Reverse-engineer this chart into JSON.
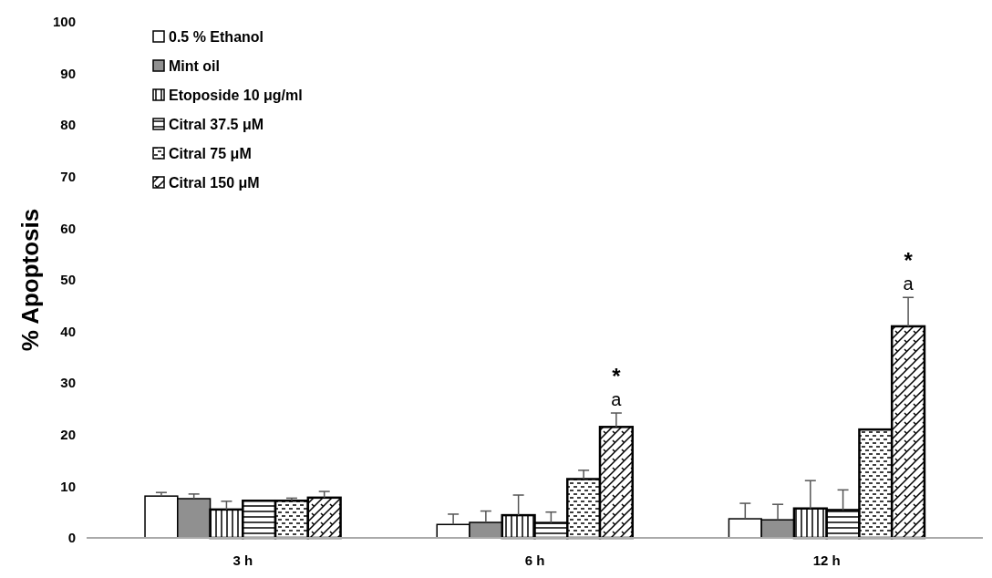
{
  "chart_data": {
    "type": "bar",
    "ylabel": "% Apoptosis",
    "categories": [
      "3 h",
      "6 h",
      "12 h"
    ],
    "series": [
      {
        "name": "0.5 % Ethanol",
        "color": "#ffffff",
        "values": [
          8.1,
          2.6,
          3.7
        ],
        "errors": [
          0.7,
          2.0,
          3.0
        ]
      },
      {
        "name": "Mint oil",
        "color": "#909090",
        "values": [
          7.6,
          3.0,
          3.5
        ],
        "errors": [
          0.9,
          2.2,
          3.0
        ]
      },
      {
        "name": "Etoposide 10 μg/ml",
        "color": "#000000",
        "values": [
          5.5,
          4.4,
          5.7
        ],
        "errors": [
          1.6,
          3.9,
          5.4
        ]
      },
      {
        "name": "Citral 37.5 μM",
        "color": "#000000",
        "values": [
          7.2,
          2.9,
          5.4
        ],
        "errors": [
          null,
          2.1,
          3.9
        ]
      },
      {
        "name": "Citral 75 μM",
        "color": "#000000",
        "values": [
          7.2,
          11.4,
          21.0
        ],
        "errors": [
          0.5,
          1.7,
          null
        ]
      },
      {
        "name": "Citral 150 μM",
        "color": "#000000",
        "values": [
          7.8,
          21.5,
          41.0
        ],
        "errors": [
          1.2,
          2.7,
          5.6
        ]
      }
    ],
    "ylim": [
      0,
      100
    ],
    "yticks": [
      0,
      10,
      20,
      30,
      40,
      50,
      60,
      70,
      80,
      90,
      100
    ],
    "grid": false,
    "legend": "top left",
    "annotations": [
      "a",
      "*",
      "a",
      "*"
    ]
  }
}
